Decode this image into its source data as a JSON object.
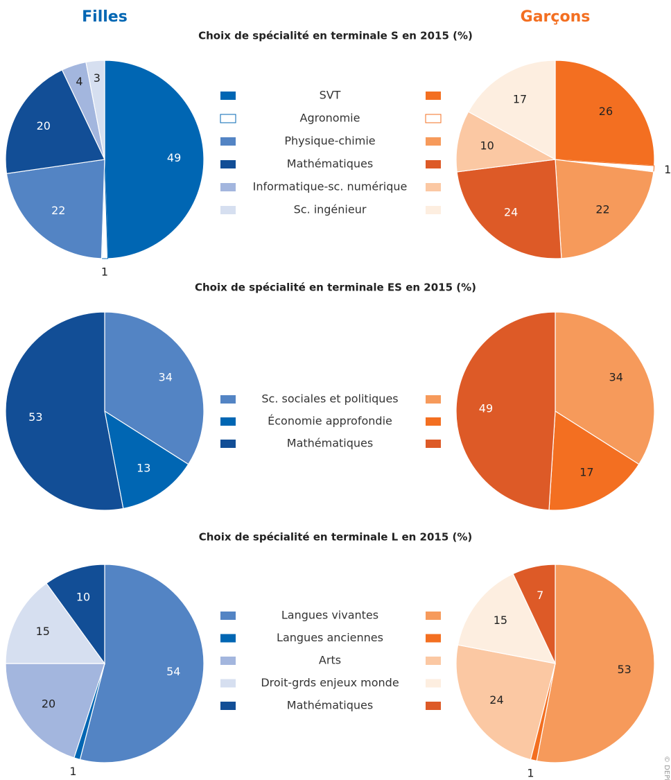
{
  "credit": "© DEPP",
  "chart_data": [
    {
      "type": "pie",
      "title": "Choix de spécialité en terminale S en 2015 (%)",
      "categories": [
        "SVT",
        "Agronomie",
        "Physique-chimie",
        "Mathématiques",
        "Informatique-sc. numérique",
        "Sc. ingénieur"
      ],
      "series": [
        {
          "name": "Filles",
          "header_color": "#0066b3",
          "colors": [
            "#0066b3",
            "#ffffff",
            "#5384c4",
            "#124e96",
            "#a3b6de",
            "#d6dff0"
          ],
          "outline": "#0066b3",
          "values": [
            49,
            1,
            22,
            20,
            4,
            3
          ]
        },
        {
          "name": "Garçons",
          "header_color": "#f36f21",
          "colors": [
            "#f36f21",
            "#ffffff",
            "#f69a5b",
            "#dd5a27",
            "#fbc8a3",
            "#fdeee0"
          ],
          "outline": "#f36f21",
          "values": [
            26,
            1,
            22,
            24,
            10,
            17
          ]
        }
      ]
    },
    {
      "type": "pie",
      "title": "Choix de spécialité en terminale ES en 2015 (%)",
      "categories": [
        "Sc. sociales et politiques",
        "Économie approfondie",
        "Mathématiques"
      ],
      "series": [
        {
          "colors": [
            "#5384c4",
            "#0066b3",
            "#124e96"
          ],
          "values": [
            34,
            13,
            53
          ]
        },
        {
          "colors": [
            "#f69a5b",
            "#f36f21",
            "#dd5a27"
          ],
          "values": [
            34,
            17,
            49
          ]
        }
      ]
    },
    {
      "type": "pie",
      "title": "Choix de spécialité en terminale L en 2015 (%)",
      "categories": [
        "Langues vivantes",
        "Langues anciennes",
        "Arts",
        "Droit-grds enjeux monde",
        "Mathématiques"
      ],
      "series": [
        {
          "colors": [
            "#5384c4",
            "#0066b3",
            "#a3b6de",
            "#d6dff0",
            "#124e96"
          ],
          "values": [
            54,
            1,
            20,
            15,
            10
          ]
        },
        {
          "colors": [
            "#f69a5b",
            "#f36f21",
            "#fbc8a3",
            "#fdeee0",
            "#dd5a27"
          ],
          "values": [
            53,
            1,
            24,
            15,
            7
          ]
        }
      ]
    }
  ]
}
